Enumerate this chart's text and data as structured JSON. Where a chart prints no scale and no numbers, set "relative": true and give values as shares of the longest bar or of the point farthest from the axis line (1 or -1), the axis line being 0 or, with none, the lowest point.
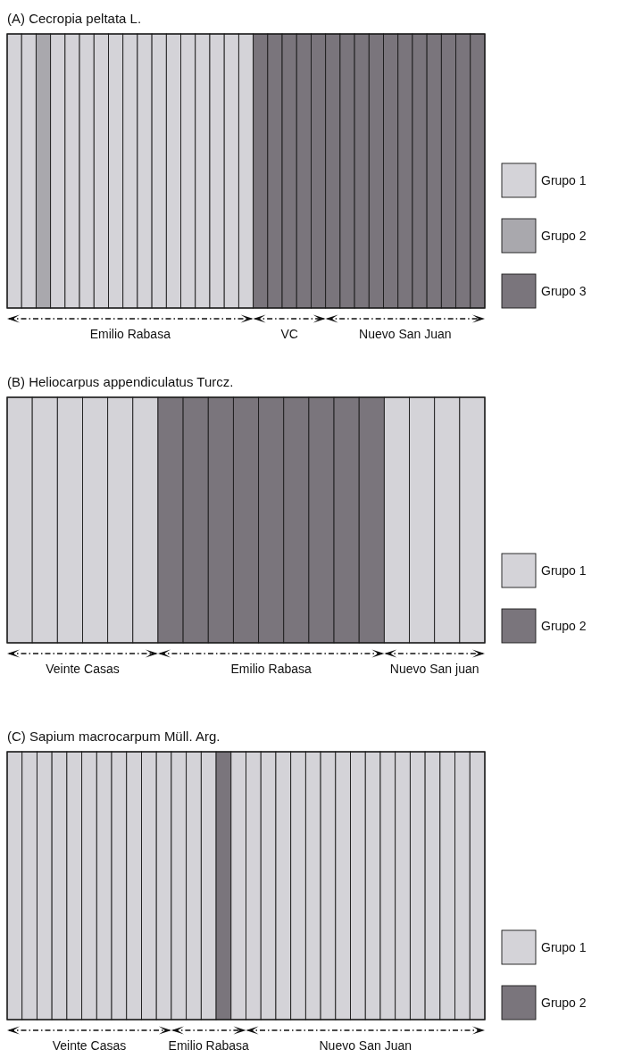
{
  "chart_data": [
    {
      "type": "bar",
      "title": "(A) Cecropia peltata L.",
      "stacked": true,
      "relative": true,
      "legend": "right",
      "categories": [
        null,
        null,
        null,
        null,
        null,
        null,
        null,
        null,
        null,
        null,
        null,
        null,
        null,
        null,
        null,
        null,
        null,
        null,
        null,
        null,
        null,
        null,
        null,
        null,
        null,
        null,
        null,
        null,
        null,
        null,
        null,
        null,
        null
      ],
      "series": [
        {
          "name": "Grupo 1",
          "color": "#d4d3d8",
          "values": [
            1,
            1,
            0,
            1,
            1,
            1,
            1,
            1,
            1,
            1,
            1,
            1,
            1,
            1,
            1,
            1,
            1,
            0,
            0,
            0,
            0,
            0,
            0,
            0,
            0,
            0,
            0,
            0,
            0,
            0,
            0,
            0,
            0
          ]
        },
        {
          "name": "Grupo 2",
          "color": "#a9a8ad",
          "values": [
            0,
            0,
            1,
            0,
            0,
            0,
            0,
            0,
            0,
            0,
            0,
            0,
            0,
            0,
            0,
            0,
            0,
            0,
            0,
            0,
            0,
            0,
            0,
            0,
            0,
            0,
            0,
            0,
            0,
            0,
            0,
            0,
            0
          ]
        },
        {
          "name": "Grupo 3",
          "color": "#7a757c",
          "values": [
            0,
            0,
            0,
            0,
            0,
            0,
            0,
            0,
            0,
            0,
            0,
            0,
            0,
            0,
            0,
            0,
            0,
            1,
            1,
            1,
            1,
            1,
            1,
            1,
            1,
            1,
            1,
            1,
            1,
            1,
            1,
            1,
            1
          ]
        }
      ],
      "annotations": [
        "Emilio Rabasa",
        "VC",
        "Nuevo San Juan"
      ]
    },
    {
      "type": "bar",
      "title": "(B) Heliocarpus appendiculatus Turcz.",
      "stacked": true,
      "relative": true,
      "legend": "right",
      "categories": [
        null,
        null,
        null,
        null,
        null,
        null,
        null,
        null,
        null,
        null,
        null,
        null,
        null,
        null,
        null,
        null,
        null,
        null,
        null
      ],
      "series": [
        {
          "name": "Grupo 1",
          "color": "#d4d3d8",
          "values": [
            1,
            1,
            1,
            1,
            1,
            1,
            0,
            0,
            0,
            0,
            0,
            0,
            0,
            0,
            0,
            1,
            1,
            1,
            1
          ]
        },
        {
          "name": "Grupo 2",
          "color": "#7a757c",
          "values": [
            0,
            0,
            0,
            0,
            0,
            0,
            1,
            1,
            1,
            1,
            1,
            1,
            1,
            1,
            1,
            0,
            0,
            0,
            0
          ]
        }
      ],
      "annotations": [
        "Veinte Casas",
        "Emilio Rabasa",
        "Nuevo San juan"
      ]
    },
    {
      "type": "bar",
      "title": "(C) Sapium macrocarpum Müll. Arg.",
      "stacked": true,
      "relative": true,
      "legend": "right",
      "categories": [
        null,
        null,
        null,
        null,
        null,
        null,
        null,
        null,
        null,
        null,
        null,
        null,
        null,
        null,
        null,
        null,
        null,
        null,
        null,
        null,
        null,
        null,
        null,
        null,
        null,
        null,
        null,
        null,
        null,
        null,
        null,
        null
      ],
      "series": [
        {
          "name": "Grupo 1",
          "color": "#d4d3d8",
          "values": [
            1,
            1,
            1,
            1,
            1,
            1,
            1,
            1,
            1,
            1,
            1,
            1,
            1,
            1,
            0,
            1,
            1,
            1,
            1,
            1,
            1,
            1,
            1,
            1,
            1,
            1,
            1,
            1,
            1,
            1,
            1,
            1
          ]
        },
        {
          "name": "Grupo 2",
          "color": "#7a757c",
          "values": [
            0,
            0,
            0,
            0,
            0,
            0,
            0,
            0,
            0,
            0,
            0,
            0,
            0,
            0,
            1,
            0,
            0,
            0,
            0,
            0,
            0,
            0,
            0,
            0,
            0,
            0,
            0,
            0,
            0,
            0,
            0,
            0
          ]
        }
      ],
      "annotations": [
        "Veinte Casas",
        "Emilio Rabasa",
        "Nuevo San Juan"
      ]
    }
  ]
}
